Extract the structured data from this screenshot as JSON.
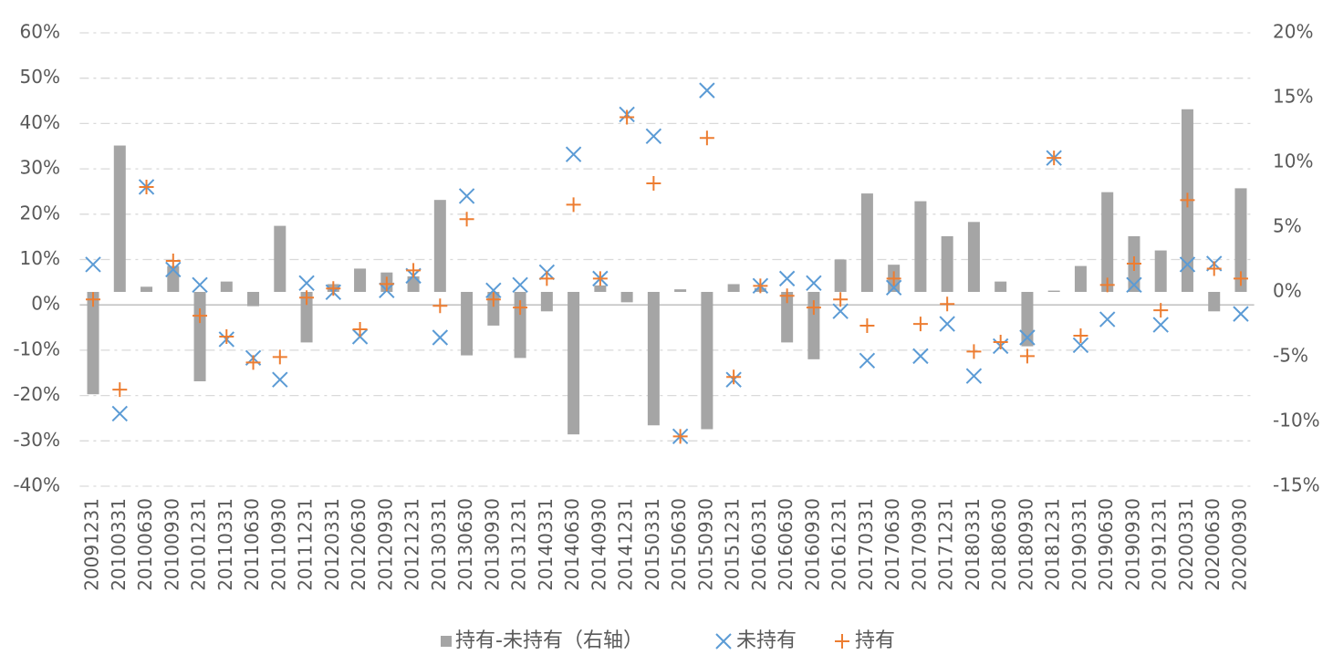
{
  "chart_data": {
    "type": "combo",
    "categories": [
      "20091231",
      "20100331",
      "20100630",
      "20100930",
      "20101231",
      "20110331",
      "20110630",
      "20110930",
      "20111231",
      "20120331",
      "20120630",
      "20120930",
      "20121231",
      "20130331",
      "20130630",
      "20130930",
      "20131231",
      "20140331",
      "20140630",
      "20140930",
      "20141231",
      "20150331",
      "20150630",
      "20150930",
      "20151231",
      "20160331",
      "20160630",
      "20160930",
      "20161231",
      "20170331",
      "20170630",
      "20170930",
      "20171231",
      "20180331",
      "20180630",
      "20180930",
      "20181231",
      "20190331",
      "20190630",
      "20190930",
      "20191231",
      "20200331",
      "20200630",
      "20200930"
    ],
    "series": [
      {
        "name": "持有-未持有（右轴）",
        "type": "bar",
        "axis": "y2",
        "color": "#a5a5a5",
        "values": [
          -7.9,
          11.3,
          0.4,
          2.0,
          -6.9,
          0.8,
          -1.1,
          5.1,
          -3.9,
          0.6,
          1.8,
          1.5,
          1.2,
          7.1,
          -4.9,
          -2.6,
          -5.1,
          -1.5,
          -11.0,
          0.5,
          -0.8,
          -10.3,
          0.2,
          -10.6,
          0.6,
          0.3,
          -3.9,
          -5.2,
          2.5,
          7.6,
          2.1,
          7.0,
          4.3,
          5.4,
          0.8,
          -4.2,
          0.1,
          2.0,
          7.7,
          4.3,
          3.2,
          14.1,
          -1.5,
          8.0
        ]
      },
      {
        "name": "未持有",
        "type": "scatter",
        "marker": "x",
        "color": "#5b9bd5",
        "values": [
          8.9,
          -24,
          26,
          7.8,
          4.4,
          -7.6,
          -11.7,
          -16.5,
          4.8,
          2.8,
          -7,
          3.2,
          6.4,
          -7.2,
          24,
          3.2,
          4.4,
          7.2,
          33.2,
          5.8,
          42,
          37.2,
          -29,
          47.3,
          -16.5,
          4.2,
          5.8,
          4.8,
          -1.4,
          -12.3,
          3.8,
          -11.3,
          -4.2,
          -15.7,
          -9.1,
          -7.2,
          32.4,
          -8.9,
          -3.2,
          4.4,
          -4.4,
          8.9,
          9.1,
          -2.0
        ]
      },
      {
        "name": "持有",
        "type": "scatter",
        "marker": "+",
        "color": "#ed7d31",
        "values": [
          1.2,
          -18.7,
          26,
          9.7,
          -2.4,
          -7.0,
          -12.7,
          -11.5,
          1.6,
          3.6,
          -5.4,
          4.6,
          7.6,
          -0.2,
          18.9,
          1.2,
          -0.6,
          5.8,
          22.1,
          5.8,
          41.4,
          26.8,
          -29,
          36.8,
          -15.9,
          4.2,
          2.0,
          -0.6,
          1.2,
          -4.6,
          5.8,
          -4.2,
          0.2,
          -10.3,
          -8.2,
          -11.3,
          32.4,
          -6.8,
          4.4,
          9.1,
          -1.2,
          23.1,
          8.0,
          5.8
        ]
      }
    ],
    "ylim": [
      -40,
      60
    ],
    "yticks": [
      {
        "value": -40,
        "label": "-40%"
      },
      {
        "value": -30,
        "label": "-30%"
      },
      {
        "value": -20,
        "label": "-20%"
      },
      {
        "value": -10,
        "label": "-10%"
      },
      {
        "value": 0,
        "label": "0%"
      },
      {
        "value": 10,
        "label": "10%"
      },
      {
        "value": 20,
        "label": "20%"
      },
      {
        "value": 30,
        "label": "30%"
      },
      {
        "value": 40,
        "label": "40%"
      },
      {
        "value": 50,
        "label": "50%"
      },
      {
        "value": 60,
        "label": "60%"
      }
    ],
    "y2lim": [
      -15,
      20
    ],
    "y2ticks": [
      {
        "value": -15,
        "label": "-15%"
      },
      {
        "value": -10,
        "label": "-10%"
      },
      {
        "value": -5,
        "label": "-5%"
      },
      {
        "value": 0,
        "label": "0%"
      },
      {
        "value": 5,
        "label": "5%"
      },
      {
        "value": 10,
        "label": "10%"
      },
      {
        "value": 15,
        "label": "15%"
      },
      {
        "value": 20,
        "label": "20%"
      }
    ],
    "grid": true,
    "legend": "bottom"
  }
}
